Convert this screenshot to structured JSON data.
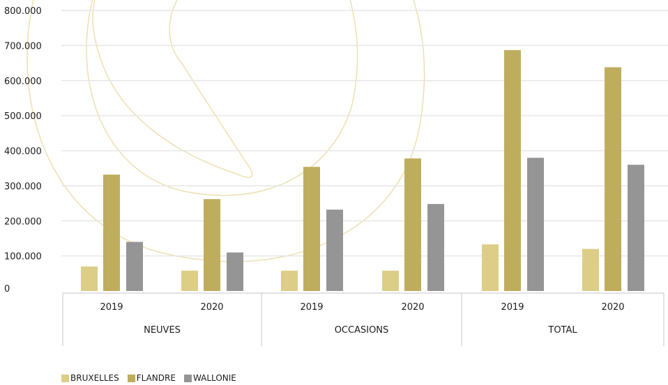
{
  "chart_data": {
    "type": "bar",
    "groups": [
      {
        "name": "NEUVES",
        "years": [
          "2019",
          "2020"
        ]
      },
      {
        "name": "OCCASIONS",
        "years": [
          "2019",
          "2020"
        ]
      },
      {
        "name": "TOTAL",
        "years": [
          "2019",
          "2020"
        ]
      }
    ],
    "series": [
      {
        "name": "BRUXELLES",
        "color": "#dccd87",
        "values": [
          70000,
          58000,
          58000,
          58000,
          133000,
          120000
        ]
      },
      {
        "name": "FLANDRE",
        "color": "#bfad5e",
        "values": [
          332000,
          262000,
          354000,
          378000,
          687000,
          638000
        ]
      },
      {
        "name": "WALLONIE",
        "color": "#959595",
        "values": [
          140000,
          110000,
          232000,
          248000,
          380000,
          360000
        ]
      }
    ],
    "yticks": [
      "0",
      "100.000",
      "200.000",
      "300.000",
      "400.000",
      "500.000",
      "600.000",
      "700.000",
      "800.000"
    ],
    "ylim": [
      0,
      800000
    ],
    "grid": true,
    "legend_position": "bottom-left"
  }
}
